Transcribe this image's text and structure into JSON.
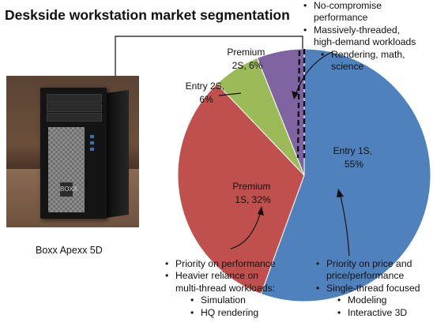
{
  "title": "Deskside workstation market segmentation",
  "photo": {
    "caption": "Boxx Apexx 5D",
    "badge_text": "BOXX"
  },
  "chart_data": {
    "type": "pie",
    "title": "Deskside workstation market segmentation",
    "slices": [
      {
        "label_lines": [
          "Entry 1S,",
          "55%"
        ],
        "value": 55,
        "color": "#4f81bd"
      },
      {
        "label_lines": [
          "Premium",
          "1S, 32%"
        ],
        "value": 32,
        "color": "#c0504d"
      },
      {
        "label_lines": [
          "Entry 2S,",
          "6%"
        ],
        "value": 6,
        "color": "#9bbb59"
      },
      {
        "label_lines": [
          "Premium",
          "2S, 6%"
        ],
        "value": 6,
        "color": "#8064a2"
      }
    ],
    "start_angle_deg": 0,
    "direction": "clockwise"
  },
  "annotations": {
    "top_right": {
      "bullet": "•",
      "sub_bullet": "•",
      "items": [
        {
          "level": 1,
          "lines": [
            "No-compromise",
            "performance"
          ]
        },
        {
          "level": 1,
          "lines": [
            "Massively-threaded,",
            "high-demand workloads"
          ]
        },
        {
          "level": 2,
          "lines": [
            "Rendering, math,",
            "science"
          ]
        }
      ]
    },
    "bottom_left": {
      "bullet": "•",
      "sub_bullet": "•",
      "items": [
        {
          "level": 1,
          "lines": [
            "Priority on performance"
          ]
        },
        {
          "level": 1,
          "lines": [
            "Heavier reliance on",
            "multi-thread workloads:"
          ]
        },
        {
          "level": 2,
          "lines": [
            "Simulation"
          ]
        },
        {
          "level": 2,
          "lines": [
            "HQ rendering"
          ]
        }
      ]
    },
    "bottom_right": {
      "bullet": "•",
      "sub_bullet": "•",
      "items": [
        {
          "level": 1,
          "lines": [
            "Priority on price and",
            "price/performance"
          ]
        },
        {
          "level": 1,
          "lines": [
            "Single-thread focused"
          ]
        },
        {
          "level": 2,
          "lines": [
            "Modeling"
          ]
        },
        {
          "level": 2,
          "lines": [
            "Interactive 3D"
          ]
        }
      ]
    }
  },
  "colors": {
    "entry_1s": "#4f81bd",
    "premium_1s": "#c0504d",
    "entry_2s": "#9bbb59",
    "premium_2s": "#8064a2",
    "text": "#111111"
  }
}
